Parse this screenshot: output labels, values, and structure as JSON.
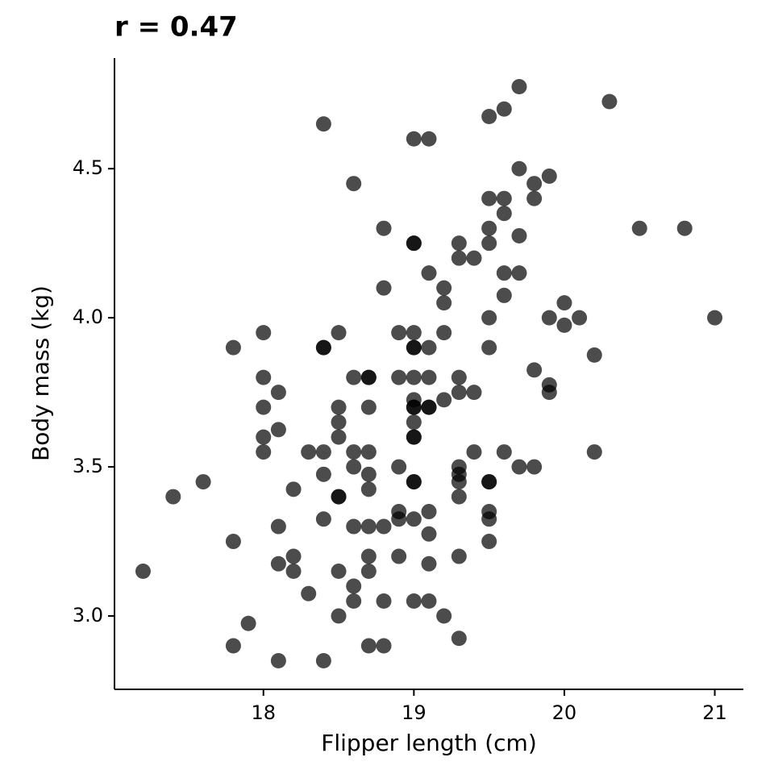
{
  "chart_data": {
    "type": "scatter",
    "title": "r = 0.47",
    "x_label": "Flipper length (cm)",
    "y_label": "Body mass (kg)",
    "x": [
      17.2,
      17.4,
      17.6,
      17.8,
      17.8,
      17.8,
      17.9,
      18.0,
      18.0,
      18.0,
      18.0,
      18.0,
      18.1,
      18.1,
      18.1,
      18.1,
      18.1,
      18.2,
      18.2,
      18.2,
      18.3,
      18.3,
      18.4,
      18.4,
      18.4,
      18.4,
      18.4,
      18.4,
      18.4,
      18.5,
      18.5,
      18.5,
      18.5,
      18.5,
      18.5,
      18.5,
      18.5,
      18.6,
      18.6,
      18.6,
      18.6,
      18.6,
      18.6,
      18.6,
      18.7,
      18.7,
      18.7,
      18.7,
      18.7,
      18.7,
      18.7,
      18.7,
      18.7,
      18.7,
      18.8,
      18.8,
      18.8,
      18.8,
      18.8,
      18.9,
      18.9,
      18.9,
      18.9,
      18.9,
      18.9,
      19.0,
      19.0,
      19.0,
      19.0,
      19.0,
      19.0,
      19.0,
      19.0,
      19.0,
      19.0,
      19.0,
      19.0,
      19.0,
      19.0,
      19.0,
      19.0,
      19.0,
      19.1,
      19.1,
      19.1,
      19.1,
      19.1,
      19.1,
      19.1,
      19.1,
      19.1,
      19.1,
      19.2,
      19.2,
      19.2,
      19.2,
      19.2,
      19.3,
      19.3,
      19.3,
      19.3,
      19.3,
      19.3,
      19.3,
      19.3,
      19.3,
      19.3,
      19.4,
      19.4,
      19.4,
      19.5,
      19.5,
      19.5,
      19.5,
      19.5,
      19.5,
      19.5,
      19.5,
      19.5,
      19.5,
      19.5,
      19.6,
      19.6,
      19.6,
      19.6,
      19.6,
      19.6,
      19.7,
      19.7,
      19.7,
      19.7,
      19.7,
      19.8,
      19.8,
      19.8,
      19.8,
      19.9,
      19.9,
      19.9,
      19.9,
      20.0,
      20.0,
      20.1,
      20.2,
      20.2,
      20.3,
      20.5,
      20.8,
      21.0
    ],
    "values": [
      3.15,
      3.4,
      3.45,
      3.9,
      3.25,
      2.9,
      2.975,
      3.95,
      3.8,
      3.7,
      3.6,
      3.55,
      3.75,
      3.625,
      3.3,
      3.175,
      2.85,
      3.425,
      3.2,
      3.15,
      3.55,
      3.075,
      4.65,
      3.9,
      3.9,
      3.55,
      3.475,
      3.325,
      2.85,
      3.95,
      3.7,
      3.65,
      3.6,
      3.4,
      3.4,
      3.15,
      3.0,
      4.45,
      3.8,
      3.55,
      3.5,
      3.3,
      3.1,
      3.05,
      3.8,
      3.8,
      3.7,
      3.55,
      3.475,
      3.425,
      3.3,
      3.2,
      3.15,
      2.9,
      4.3,
      4.1,
      3.3,
      3.05,
      2.9,
      3.95,
      3.8,
      3.5,
      3.35,
      3.325,
      3.2,
      4.6,
      4.25,
      4.25,
      3.95,
      3.9,
      3.9,
      3.8,
      3.725,
      3.7,
      3.7,
      3.65,
      3.6,
      3.6,
      3.45,
      3.45,
      3.325,
      3.05,
      4.6,
      4.15,
      3.9,
      3.8,
      3.7,
      3.7,
      3.35,
      3.275,
      3.175,
      3.05,
      4.1,
      4.05,
      3.95,
      3.725,
      3.0,
      4.25,
      4.2,
      3.8,
      3.75,
      3.5,
      3.475,
      3.45,
      3.4,
      3.2,
      2.925,
      4.2,
      3.75,
      3.55,
      4.675,
      4.4,
      4.3,
      4.25,
      4.0,
      3.9,
      3.45,
      3.45,
      3.35,
      3.325,
      3.25,
      4.7,
      4.4,
      4.35,
      4.15,
      4.075,
      3.55,
      4.775,
      4.5,
      4.275,
      4.15,
      3.5,
      4.45,
      4.4,
      3.825,
      3.5,
      4.475,
      4.0,
      3.775,
      3.75,
      4.05,
      3.975,
      4.0,
      3.875,
      3.55,
      4.725,
      4.3,
      4.3,
      4.0
    ],
    "color": "#000000",
    "opacity": 0.7,
    "xlim": [
      17.01,
      21.19
    ],
    "xticks": [
      18,
      19,
      20,
      21
    ],
    "ylim": [
      2.754,
      4.871
    ],
    "yticks": [
      {
        "value": 3,
        "label": "3.0"
      },
      {
        "value": 3.5,
        "label": "3.5"
      },
      {
        "value": 4,
        "label": "4.0"
      },
      {
        "value": 4.5,
        "label": "4.5"
      }
    ],
    "grid": false
  }
}
